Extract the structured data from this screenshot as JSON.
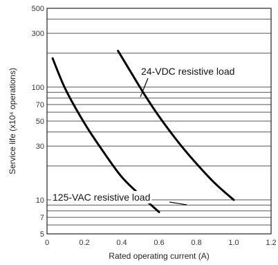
{
  "chart_data": {
    "type": "line",
    "xlabel": "Rated operating current (A)",
    "ylabel": "Service life (x10⁴ operations)",
    "xlim": [
      0,
      1.2
    ],
    "ylim": [
      5,
      500
    ],
    "yscale": "log",
    "x_ticks": [
      "0",
      "0.2",
      "0.4",
      "0.6",
      "0.8",
      "1.0",
      "1.2"
    ],
    "y_ticks": [
      {
        "value": 500,
        "label": "500"
      },
      {
        "value": 300,
        "label": "300"
      },
      {
        "value": 100,
        "label": "100"
      },
      {
        "value": 70,
        "label": "70"
      },
      {
        "value": 50,
        "label": "50"
      },
      {
        "value": 30,
        "label": "30"
      },
      {
        "value": 10,
        "label": "10"
      },
      {
        "value": 7,
        "label": "7"
      },
      {
        "value": 5,
        "label": "5"
      }
    ],
    "grid": "horizontal",
    "series": [
      {
        "name": "24-VDC resistive load",
        "x": [
          0.38,
          0.45,
          0.52,
          0.6,
          0.7,
          0.8,
          0.9,
          1.0
        ],
        "y": [
          210,
          135,
          87,
          55,
          33,
          21,
          14,
          10
        ]
      },
      {
        "name": "125-VAC resistive load",
        "x": [
          0.03,
          0.1,
          0.2,
          0.3,
          0.4,
          0.5,
          0.6
        ],
        "y": [
          180,
          95,
          48,
          27,
          16,
          11,
          7.8
        ]
      }
    ]
  }
}
